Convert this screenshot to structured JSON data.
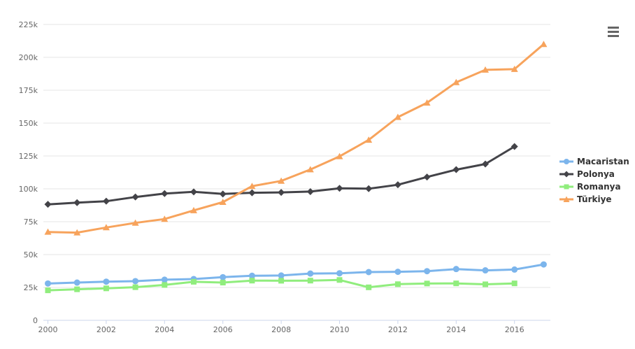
{
  "chart": {
    "title": "",
    "menu_button": "export-context-menu"
  },
  "colors": {
    "background": "#ffffff",
    "gridline": "#e6e6e6",
    "axis_line": "#ccd6eb",
    "axis_label": "#666666",
    "legend_text": "#333333",
    "menu_icon": "#666666"
  },
  "chart_data": {
    "type": "line",
    "title": "",
    "xlabel": "",
    "ylabel": "",
    "x": [
      2000,
      2001,
      2002,
      2003,
      2004,
      2005,
      2006,
      2007,
      2008,
      2009,
      2010,
      2011,
      2012,
      2013,
      2014,
      2015,
      2016,
      2017
    ],
    "x_tick_labels": [
      "2000",
      "2002",
      "2004",
      "2006",
      "2008",
      "2010",
      "2012",
      "2014",
      "2016"
    ],
    "x_tick_years": [
      2000,
      2002,
      2004,
      2006,
      2008,
      2010,
      2012,
      2014,
      2016
    ],
    "y_tick_labels": [
      "0",
      "25k",
      "50k",
      "75k",
      "100k",
      "125k",
      "150k",
      "175k",
      "200k",
      "225k"
    ],
    "y_tick_step": 25000,
    "ylim": [
      0,
      225000
    ],
    "xlim": [
      2000,
      2017
    ],
    "grid": "horizontal",
    "legend_position": "right",
    "series": [
      {
        "name": "Macaristan",
        "color": "#7cb5ec",
        "marker": "circle",
        "start_year": 2000,
        "values": [
          28000,
          28700,
          29400,
          29800,
          30900,
          31400,
          32800,
          33900,
          34100,
          35600,
          35800,
          36700,
          36900,
          37400,
          39000,
          38000,
          38600,
          42500
        ]
      },
      {
        "name": "Polonya",
        "color": "#434348",
        "marker": "diamond",
        "start_year": 2000,
        "values": [
          88200,
          89500,
          90600,
          93800,
          96400,
          97700,
          96100,
          97000,
          97300,
          97900,
          100400,
          100100,
          103100,
          109000,
          114600,
          118900,
          132200
        ]
      },
      {
        "name": "Romanya",
        "color": "#90ed7d",
        "marker": "square",
        "start_year": 2000,
        "values": [
          22800,
          23600,
          24300,
          25200,
          26900,
          29300,
          28700,
          30200,
          30100,
          30200,
          30700,
          25100,
          27500,
          28000,
          28100,
          27400,
          28100
        ]
      },
      {
        "name": "Türkiye",
        "color": "#f7a35c",
        "marker": "triangle",
        "start_year": 2000,
        "values": [
          67200,
          66700,
          70600,
          74100,
          77000,
          83600,
          89900,
          102000,
          106000,
          114700,
          124700,
          137200,
          154500,
          165400,
          181000,
          190500,
          191000,
          210000
        ]
      }
    ]
  }
}
